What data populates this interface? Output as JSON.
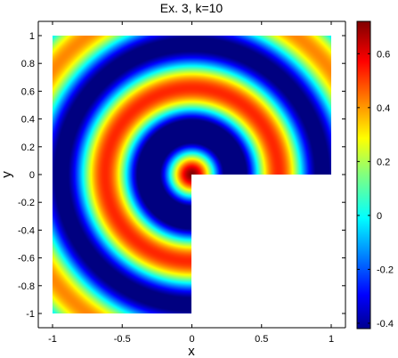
{
  "chart_data": {
    "type": "heatmap",
    "title": "Ex.  3, k=10",
    "xlabel": "x",
    "ylabel": "y",
    "xlim": [
      -1,
      1
    ],
    "ylim": [
      -1,
      1
    ],
    "x_ticks": [
      "-1",
      "-0.5",
      "0",
      "0.5",
      "1"
    ],
    "x_tick_values": [
      -1,
      -0.5,
      0,
      0.5,
      1
    ],
    "y_ticks": [
      "1",
      "0.8",
      "0.6",
      "0.4",
      "0.2",
      "0",
      "-0.2",
      "-0.4",
      "-0.6",
      "-0.8",
      "-1"
    ],
    "y_tick_values": [
      1,
      0.8,
      0.6,
      0.4,
      0.2,
      0,
      -0.2,
      -0.4,
      -0.6,
      -0.8,
      -1
    ],
    "colorbar": {
      "colormap": "jet",
      "clim": [
        -0.42,
        0.72
      ],
      "ticks": [
        "0.6",
        "0.4",
        "0.2",
        "0",
        "-0.2",
        "-0.4"
      ],
      "tick_values": [
        0.6,
        0.4,
        0.2,
        0,
        -0.2,
        -0.4
      ]
    },
    "domain": "L-shaped region [-1,1]x[-1,1] minus (0,1]x(0,-1]... i.e. lower-right quadrant x>0, y<0 removed",
    "field": {
      "k": 10,
      "peak_value": 0.72,
      "ring_rings_radii_approx": [
        0.0,
        0.31,
        0.62,
        0.93,
        1.24
      ],
      "description_values": "concentric rings: max at origin, alternating low/high every ~0.31 in radius"
    },
    "grid": false,
    "legend": "none"
  }
}
